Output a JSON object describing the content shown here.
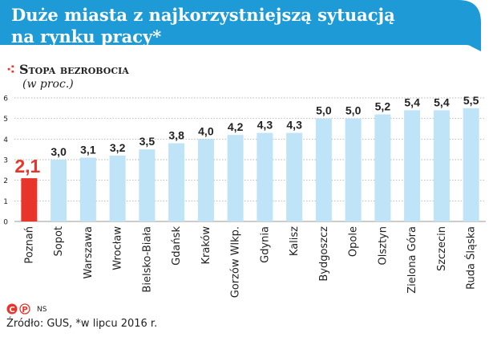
{
  "title": {
    "line1": "Duże miasta z najkorzystniejszą sytuacją",
    "line2": "na rynku pracy*"
  },
  "subtitle": "Stopa bezrobocia",
  "subtitle_icon": "red-dots-icon",
  "unit": "(w proc.)",
  "footer": {
    "logo_icons": [
      "copyright-c-icon",
      "copyright-p-icon"
    ],
    "author": "NS",
    "source": "Źródło: GUS, *w lipcu 2016 r."
  },
  "colors": {
    "banner": "#1e9bd7",
    "bar": "#bfe3f7",
    "highlight_bar": "#e8352b",
    "text": "#222222"
  },
  "chart_data": {
    "type": "bar",
    "categories": [
      "Poznań",
      "Sopot",
      "Warszawa",
      "Wrocław",
      "Bielsko-Biała",
      "Gdańsk",
      "Kraków",
      "Gorzów Wlkp.",
      "Gdynia",
      "Kalisz",
      "Bydgoszcz",
      "Opole",
      "Olsztyn",
      "Zielona Góra",
      "Szczecin",
      "Ruda Śląska"
    ],
    "values": [
      2.1,
      3.0,
      3.1,
      3.2,
      3.5,
      3.8,
      4.0,
      4.2,
      4.3,
      4.3,
      5.0,
      5.0,
      5.2,
      5.4,
      5.4,
      5.5
    ],
    "value_labels": [
      "2,1",
      "3,0",
      "3,1",
      "3,2",
      "3,5",
      "3,8",
      "4,0",
      "4,2",
      "4,3",
      "4,3",
      "5,0",
      "5,0",
      "5,2",
      "5,4",
      "5,4",
      "5,5"
    ],
    "highlight_index": 0,
    "ylim": [
      0,
      6
    ],
    "yticks": [
      0,
      1,
      2,
      3,
      4,
      5,
      6
    ],
    "grid": true,
    "title": "Stopa bezrobocia",
    "ylabel": "(w proc.)",
    "xlabel": ""
  }
}
